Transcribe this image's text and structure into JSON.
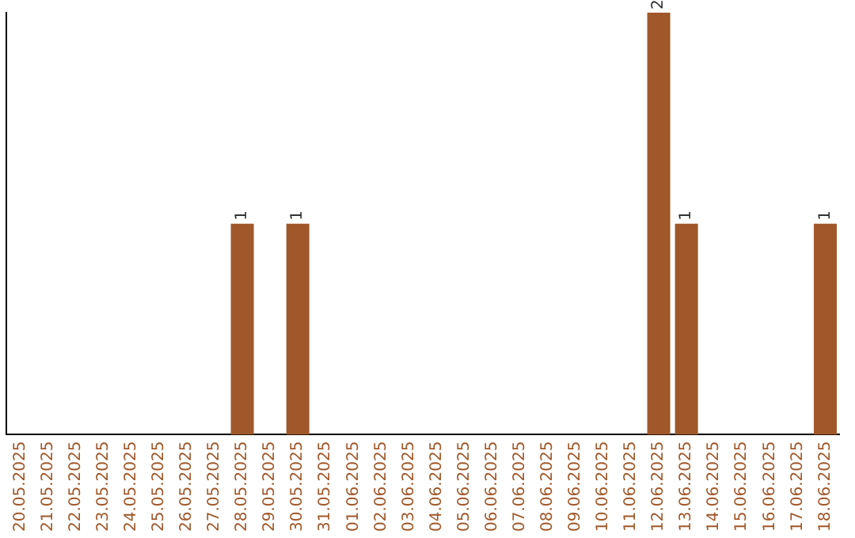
{
  "chart_data": {
    "type": "bar",
    "categories": [
      "20.05.2025",
      "21.05.2025",
      "22.05.2025",
      "23.05.2025",
      "24.05.2025",
      "25.05.2025",
      "26.05.2025",
      "27.05.2025",
      "28.05.2025",
      "29.05.2025",
      "30.05.2025",
      "31.05.2025",
      "01.06.2025",
      "02.06.2025",
      "03.06.2025",
      "04.06.2025",
      "05.06.2025",
      "06.06.2025",
      "07.06.2025",
      "08.06.2025",
      "09.06.2025",
      "10.06.2025",
      "11.06.2025",
      "12.06.2025",
      "13.06.2025",
      "14.06.2025",
      "15.06.2025",
      "16.06.2025",
      "17.06.2025",
      "18.06.2025"
    ],
    "values": [
      0,
      0,
      0,
      0,
      0,
      0,
      0,
      0,
      1,
      0,
      1,
      0,
      0,
      0,
      0,
      0,
      0,
      0,
      0,
      0,
      0,
      0,
      0,
      2,
      1,
      0,
      0,
      0,
      0,
      1
    ],
    "value_labels": [
      null,
      null,
      null,
      null,
      null,
      null,
      null,
      null,
      "1",
      null,
      "1",
      null,
      null,
      null,
      null,
      null,
      null,
      null,
      null,
      null,
      null,
      null,
      null,
      "2",
      "1",
      null,
      null,
      null,
      null,
      "1"
    ],
    "color": "#a0582a",
    "tick_labels": "x",
    "grid": false,
    "legend": false
  }
}
